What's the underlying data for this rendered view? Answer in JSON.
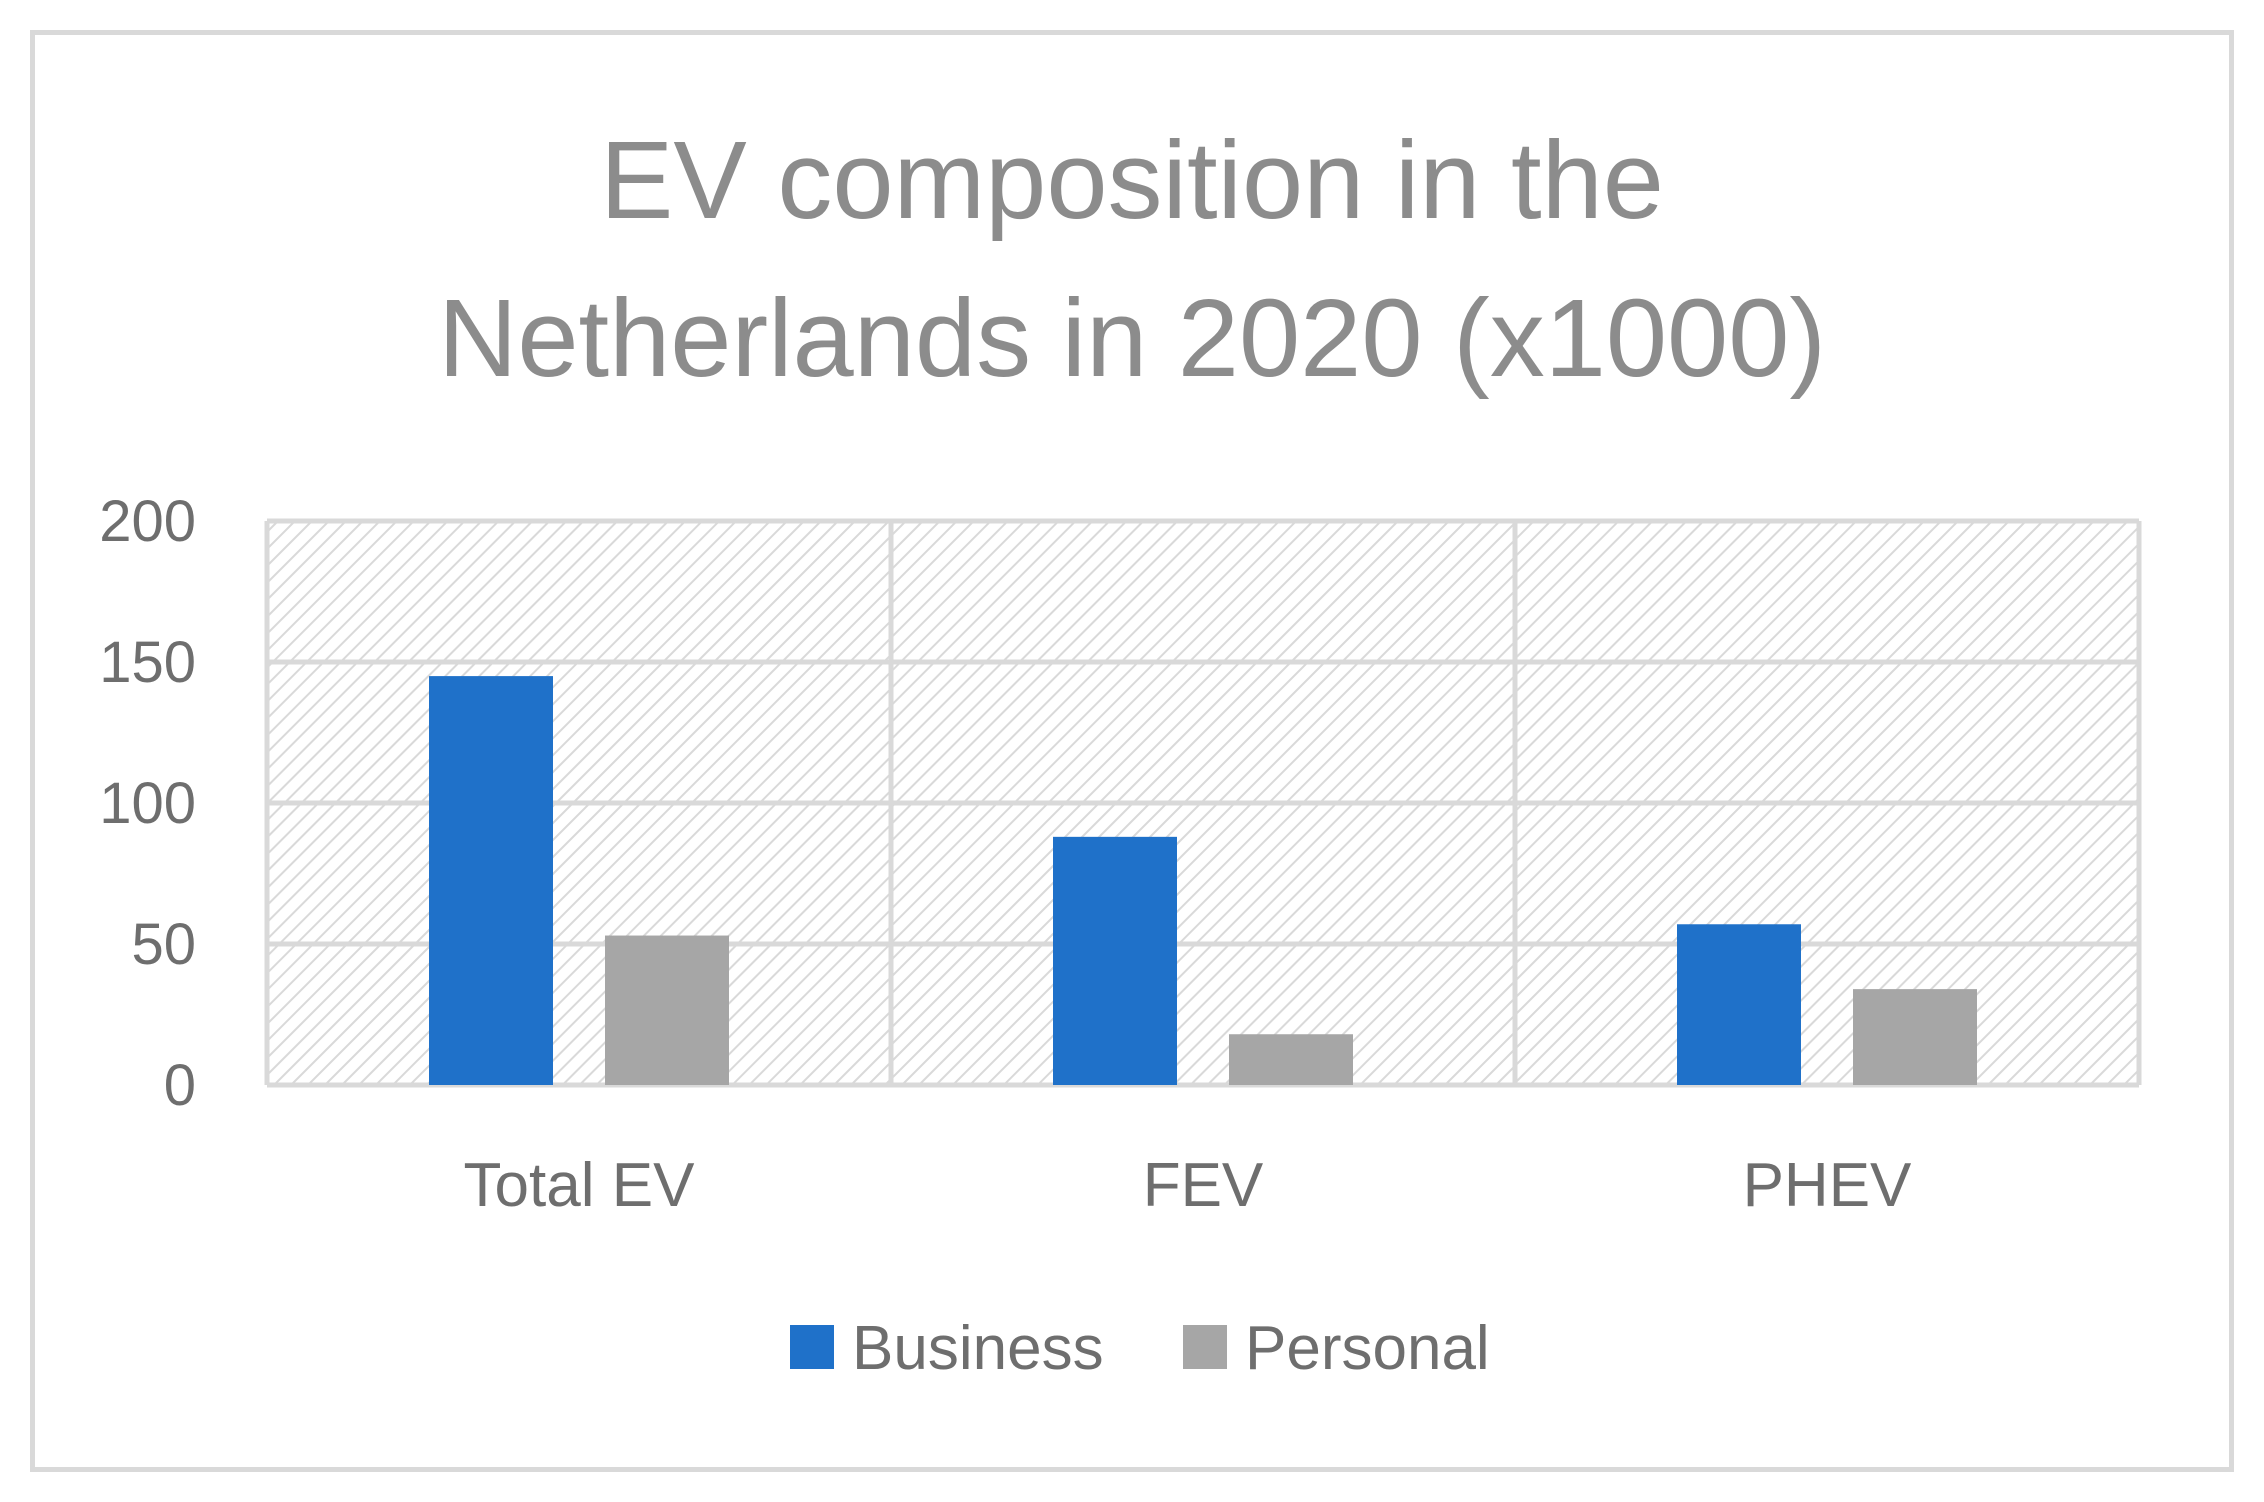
{
  "chart_data": {
    "type": "bar",
    "title_lines": [
      "EV composition in the",
      "Netherlands in 2020 (x1000)"
    ],
    "categories": [
      "Total EV",
      "FEV",
      "PHEV"
    ],
    "series": [
      {
        "name": "Business",
        "values": [
          145,
          88,
          57
        ],
        "color": "#1f71c9"
      },
      {
        "name": "Personal",
        "values": [
          53,
          18,
          34
        ],
        "color": "#a6a6a6"
      }
    ],
    "y_ticks": [
      "0",
      "50",
      "100",
      "150",
      "200"
    ],
    "ylim": [
      0,
      200
    ],
    "grid": true,
    "legend_position": "bottom"
  },
  "colors": {
    "title": "#8c8c8c",
    "axis_text": "#6e6e6e",
    "gridline": "#d9d9d9",
    "frame": "#d9d9d9",
    "plot_hatch": "#d9d9d9"
  }
}
